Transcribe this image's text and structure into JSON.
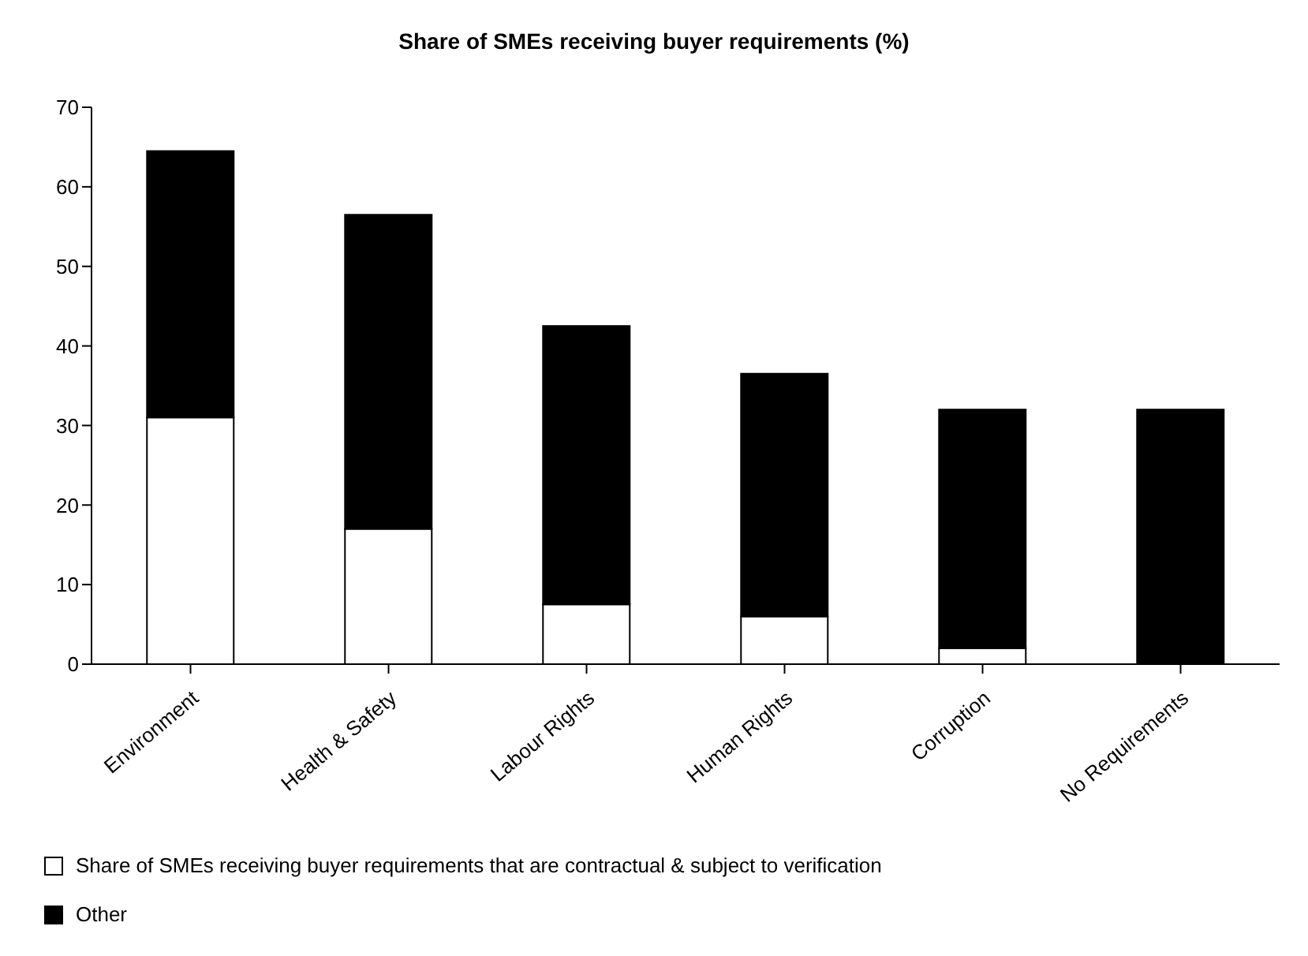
{
  "chart_data": {
    "type": "bar",
    "title": "Share of SMEs receiving buyer requirements (%)",
    "categories": [
      "Environment",
      "Health & Safety",
      "Labour Rights",
      "Human Rights",
      "Corruption",
      "No Requirements"
    ],
    "stacked": true,
    "series": [
      {
        "name": "Share of SMEs receiving buyer requirements that are contractual & subject to verification",
        "color": "#ffffff",
        "values": [
          31,
          17,
          7.5,
          6,
          2,
          0
        ]
      },
      {
        "name": "Other",
        "color": "#000000",
        "values": [
          33.5,
          39.5,
          35,
          30.5,
          30,
          32
        ]
      }
    ],
    "ylim": [
      0,
      70
    ],
    "yticks": [
      0,
      10,
      20,
      30,
      40,
      50,
      60,
      70
    ],
    "grid": false,
    "legend": "bottom"
  }
}
